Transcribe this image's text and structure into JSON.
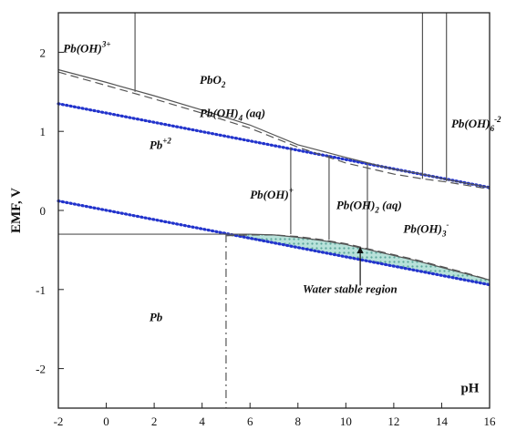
{
  "chart_data": {
    "type": "line",
    "title": "",
    "xlabel": "pH",
    "ylabel": "EMF, V",
    "xlim": [
      -2,
      16
    ],
    "ylim": [
      -2.5,
      2.5
    ],
    "x_ticks": [
      -2,
      0,
      2,
      4,
      6,
      8,
      10,
      12,
      14,
      16
    ],
    "y_ticks": [
      2,
      1,
      0,
      -1,
      -2
    ],
    "grid": false,
    "legend": "none",
    "series": [
      {
        "style": "dotted",
        "color": "#2233cc",
        "x": [
          -2,
          16
        ],
        "y": [
          1.35,
          0.29
        ]
      },
      {
        "style": "dotted",
        "color": "#2233cc",
        "x": [
          -2,
          16
        ],
        "y": [
          0.12,
          -0.94
        ]
      },
      {
        "style": "solid",
        "color": "#555555",
        "x": [
          -2,
          0,
          2,
          4,
          6,
          8,
          10,
          12,
          13.2,
          14.2,
          16
        ],
        "y": [
          1.78,
          1.62,
          1.45,
          1.27,
          1.08,
          0.83,
          0.67,
          0.52,
          0.46,
          0.39,
          0.29
        ]
      },
      {
        "style": "dashed",
        "color": "#555555",
        "x": [
          -2,
          0,
          2,
          4,
          6,
          8,
          10,
          12,
          13.2,
          14.2,
          16
        ],
        "y": [
          1.75,
          1.58,
          1.41,
          1.23,
          1.04,
          0.8,
          0.6,
          0.46,
          0.4,
          0.36,
          0.27
        ]
      },
      {
        "style": "solid",
        "color": "#555555",
        "x": [
          -2,
          5,
          6,
          7,
          8,
          9,
          10,
          11,
          12,
          13,
          14,
          15,
          16
        ],
        "y": [
          -0.3,
          -0.3,
          -0.3,
          -0.31,
          -0.34,
          -0.38,
          -0.43,
          -0.5,
          -0.57,
          -0.64,
          -0.72,
          -0.8,
          -0.88
        ]
      },
      {
        "style": "dashed",
        "color": "#555555",
        "x": [
          5,
          6,
          7,
          8,
          9,
          10,
          11,
          12,
          13,
          14,
          15,
          16
        ],
        "y": [
          -0.32,
          -0.31,
          -0.31,
          -0.33,
          -0.37,
          -0.42,
          -0.49,
          -0.56,
          -0.63,
          -0.71,
          -0.79,
          -0.88
        ]
      },
      {
        "style": "solid",
        "color": "#555555",
        "x": [
          1.2,
          1.2
        ],
        "y": [
          2.5,
          1.5
        ]
      },
      {
        "style": "solid",
        "color": "#555555",
        "x": [
          13.2,
          13.2
        ],
        "y": [
          2.5,
          0.4
        ]
      },
      {
        "style": "solid",
        "color": "#555555",
        "x": [
          14.2,
          14.2
        ],
        "y": [
          2.5,
          0.37
        ]
      },
      {
        "style": "solid",
        "color": "#555555",
        "x": [
          7.7,
          7.7
        ],
        "y": [
          0.8,
          -0.3
        ]
      },
      {
        "style": "solid",
        "color": "#555555",
        "x": [
          9.3,
          9.3
        ],
        "y": [
          0.7,
          -0.37
        ]
      },
      {
        "style": "solid",
        "color": "#555555",
        "x": [
          10.9,
          10.9
        ],
        "y": [
          0.6,
          -0.49
        ]
      },
      {
        "style": "dashdot",
        "color": "#555555",
        "x": [
          5,
          5
        ],
        "y": [
          -0.3,
          -2.5
        ]
      }
    ],
    "shaded_region": {
      "label": "Water stable region",
      "fill": "#9cd3c9",
      "upper": {
        "x": [
          5,
          6,
          7,
          8,
          9,
          10,
          11,
          12,
          13,
          14,
          15,
          16
        ],
        "y": [
          -0.3,
          -0.3,
          -0.31,
          -0.34,
          -0.38,
          -0.43,
          -0.5,
          -0.57,
          -0.64,
          -0.72,
          -0.8,
          -0.88
        ]
      },
      "lower": {
        "x": [
          16,
          5
        ],
        "y": [
          -0.94,
          -0.31
        ]
      }
    },
    "annotations": [
      {
        "text": "Pb(OH)",
        "sup": "3+",
        "x": -1.8,
        "y": 2.0
      },
      {
        "text": "PbO",
        "sub": "2",
        "x": 3.9,
        "y": 1.6
      },
      {
        "text": "Pb(OH)",
        "sub": "4",
        "tail": " (aq)",
        "x": 3.9,
        "y": 1.18
      },
      {
        "text": "Pb(OH)",
        "sub": "6",
        "sup": "-2",
        "x": 14.4,
        "y": 1.05
      },
      {
        "text": "Pb",
        "sup": "+2",
        "x": 1.8,
        "y": 0.78
      },
      {
        "text": "Pb(OH)",
        "sup": "+",
        "x": 6.0,
        "y": 0.15
      },
      {
        "text": "Pb(OH)",
        "sub": "2",
        "tail": " (aq)",
        "x": 9.6,
        "y": 0.02
      },
      {
        "text": "Pb(OH)",
        "sub": "3",
        "sup": "-",
        "x": 12.4,
        "y": -0.28
      },
      {
        "text": "Water stable region",
        "x": 8.2,
        "y": -1.04
      },
      {
        "text": "Pb",
        "x": 1.8,
        "y": -1.4
      },
      {
        "text": "pH",
        "x": 14.8,
        "y": -2.3
      }
    ]
  }
}
